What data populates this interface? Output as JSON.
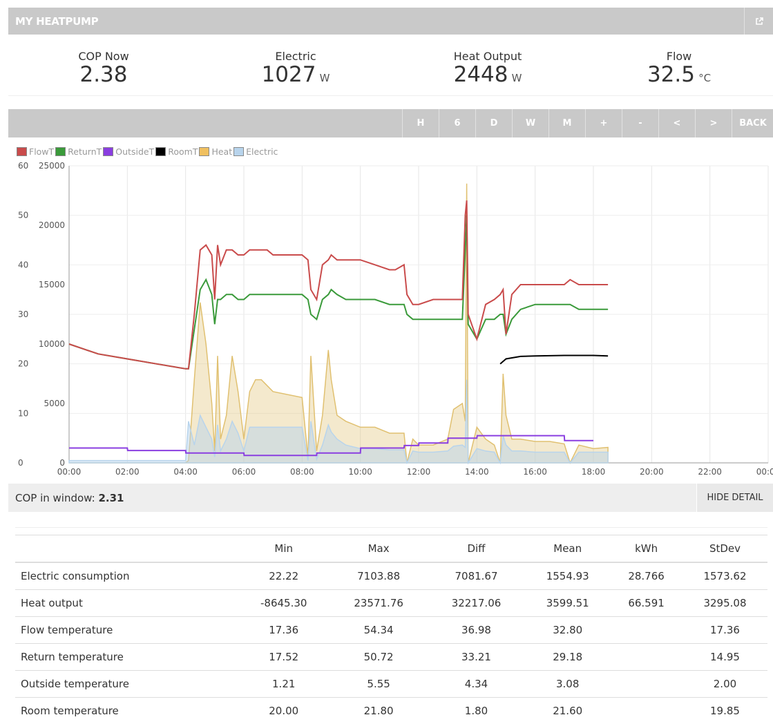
{
  "header": {
    "title": "MY HEATPUMP",
    "external_icon": "external-link-icon"
  },
  "stats": [
    {
      "label": "COP Now",
      "value": "2.38",
      "unit": ""
    },
    {
      "label": "Electric",
      "value": "1027",
      "unit": "W"
    },
    {
      "label": "Heat Output",
      "value": "2448",
      "unit": "W"
    },
    {
      "label": "Flow",
      "value": "32.5",
      "unit": "°C"
    }
  ],
  "toolbar": {
    "buttons": [
      "H",
      "6",
      "D",
      "W",
      "M",
      "+",
      "-",
      "<",
      ">",
      "BACK"
    ]
  },
  "legend": [
    {
      "name": "FlowT",
      "color": "#c94b4b"
    },
    {
      "name": "ReturnT",
      "color": "#3a9a3a"
    },
    {
      "name": "OutsideT",
      "color": "#8a3ee0"
    },
    {
      "name": "RoomT",
      "color": "#000000"
    },
    {
      "name": "Heat",
      "color": "#f0c060"
    },
    {
      "name": "Electric",
      "color": "#b8d4ec"
    }
  ],
  "chart_data": {
    "type": "line",
    "x_ticks": [
      "00:00",
      "02:00",
      "04:00",
      "06:00",
      "08:00",
      "10:00",
      "12:00",
      "14:00",
      "16:00",
      "18:00",
      "20:00",
      "22:00",
      "00:00"
    ],
    "xlim": [
      0,
      24
    ],
    "y_left_ticks": [
      0,
      10,
      20,
      30,
      40,
      50,
      60
    ],
    "y_left_lim": [
      0,
      60
    ],
    "y_right_ticks": [
      0,
      5000,
      10000,
      15000,
      20000,
      25000
    ],
    "y_right_lim": [
      0,
      25000
    ],
    "grid": true,
    "legend_position": "top-left",
    "series": [
      {
        "name": "FlowT",
        "axis": "left",
        "color": "#c94b4b",
        "x": [
          0,
          0.5,
          1,
          2,
          3,
          4,
          4.1,
          4.3,
          4.5,
          4.7,
          4.9,
          5.0,
          5.1,
          5.2,
          5.4,
          5.6,
          5.8,
          6.0,
          6.2,
          6.4,
          6.6,
          6.8,
          7,
          8,
          8.2,
          8.3,
          8.5,
          8.7,
          8.9,
          9.0,
          9.2,
          9.5,
          10,
          10.5,
          11,
          11.2,
          11.5,
          11.6,
          11.8,
          12,
          12.5,
          13,
          13.2,
          13.5,
          13.6,
          13.65,
          13.7,
          14,
          14.3,
          14.6,
          14.8,
          14.9,
          15.0,
          15.2,
          15.5,
          16,
          16.5,
          17,
          17.2,
          17.5,
          18,
          18.5
        ],
        "y": [
          24,
          23,
          22,
          21,
          20,
          19,
          19,
          30,
          43,
          44,
          42,
          33,
          44,
          40,
          43,
          43,
          42,
          42,
          43,
          43,
          43,
          43,
          42,
          42,
          41,
          35,
          33,
          40,
          41,
          42,
          41,
          41,
          41,
          40,
          39,
          39,
          40,
          34,
          32,
          32,
          33,
          33,
          33,
          33,
          50,
          53,
          30,
          25,
          32,
          33,
          34,
          35,
          26,
          34,
          36,
          36,
          36,
          36,
          37,
          36,
          36,
          36
        ]
      },
      {
        "name": "ReturnT",
        "axis": "left",
        "color": "#3a9a3a",
        "x": [
          0,
          0.5,
          1,
          2,
          3,
          4,
          4.1,
          4.3,
          4.5,
          4.7,
          4.9,
          5.0,
          5.1,
          5.2,
          5.4,
          5.6,
          5.8,
          6.0,
          6.2,
          6.4,
          6.6,
          6.8,
          7,
          8,
          8.2,
          8.3,
          8.5,
          8.7,
          8.9,
          9.0,
          9.2,
          9.5,
          10,
          10.5,
          11,
          11.2,
          11.5,
          11.6,
          11.8,
          12,
          12.5,
          13,
          13.2,
          13.5,
          13.6,
          13.65,
          13.7,
          14,
          14.3,
          14.6,
          14.8,
          14.9,
          15.0,
          15.2,
          15.5,
          16,
          16.5,
          17,
          17.2,
          17.5,
          18,
          18.5
        ],
        "y": [
          24,
          23,
          22,
          21,
          20,
          19,
          19,
          27,
          35,
          37,
          34,
          28,
          33,
          33,
          34,
          34,
          33,
          33,
          34,
          34,
          34,
          34,
          34,
          34,
          33,
          30,
          29,
          33,
          34,
          35,
          34,
          33,
          33,
          33,
          32,
          32,
          32,
          30,
          29,
          29,
          29,
          29,
          29,
          29,
          43,
          50,
          28,
          25,
          29,
          29,
          30,
          30,
          26,
          29,
          31,
          32,
          32,
          32,
          32,
          31,
          31,
          31
        ]
      },
      {
        "name": "OutsideT",
        "axis": "left",
        "color": "#8a3ee0",
        "x": [
          0,
          2,
          2.01,
          4,
          4.01,
          6,
          6.01,
          8.5,
          8.51,
          10,
          10.01,
          11.5,
          11.51,
          12,
          12.01,
          13,
          13.01,
          14,
          14.01,
          17,
          17.01,
          18
        ],
        "y": [
          3,
          3,
          2.5,
          2.5,
          2,
          2,
          1.5,
          1.5,
          2,
          2,
          3,
          3,
          3.5,
          3.5,
          4,
          4,
          5,
          5,
          5.5,
          5.5,
          4.5,
          4.5
        ]
      },
      {
        "name": "RoomT",
        "axis": "left",
        "color": "#000000",
        "x": [
          14.8,
          15,
          15.5,
          16,
          17,
          18,
          18.5
        ],
        "y": [
          20,
          21,
          21.5,
          21.6,
          21.7,
          21.7,
          21.6
        ]
      },
      {
        "name": "Heat",
        "axis": "right",
        "color": "#e0c070",
        "x": [
          0,
          4,
          4.1,
          4.3,
          4.5,
          4.7,
          4.9,
          5.0,
          5.1,
          5.2,
          5.4,
          5.6,
          5.8,
          6.0,
          6.2,
          6.4,
          6.6,
          6.8,
          7,
          8,
          8.2,
          8.3,
          8.5,
          8.7,
          8.9,
          9.0,
          9.2,
          9.5,
          10,
          10.5,
          11,
          11.2,
          11.5,
          11.6,
          11.8,
          12,
          12.5,
          13,
          13.2,
          13.5,
          13.6,
          13.65,
          13.7,
          14,
          14.3,
          14.6,
          14.8,
          14.9,
          15.0,
          15.2,
          15.5,
          16,
          16.5,
          17,
          17.2,
          17.5,
          18,
          18.5
        ],
        "y": [
          0,
          0,
          200,
          7000,
          13500,
          10000,
          5000,
          1000,
          9000,
          2000,
          4000,
          9000,
          6000,
          2000,
          6000,
          7000,
          7000,
          6500,
          6000,
          5500,
          500,
          9000,
          1000,
          4000,
          9500,
          7000,
          4000,
          3500,
          3000,
          3000,
          2500,
          2500,
          2500,
          0,
          2000,
          1500,
          1500,
          2000,
          4500,
          5000,
          3500,
          23500,
          0,
          3000,
          2000,
          1500,
          0,
          7500,
          4000,
          2000,
          2000,
          1800,
          1800,
          1600,
          0,
          1500,
          1200,
          1300
        ]
      },
      {
        "name": "Electric",
        "axis": "right",
        "color": "#b8d4ec",
        "x": [
          0,
          4,
          4.1,
          4.3,
          4.5,
          4.7,
          4.9,
          5.0,
          5.1,
          5.2,
          5.4,
          5.6,
          5.8,
          6.0,
          6.2,
          6.4,
          6.6,
          6.8,
          7,
          8,
          8.2,
          8.3,
          8.5,
          8.7,
          8.9,
          9.0,
          9.2,
          9.5,
          10,
          10.5,
          11,
          11.2,
          11.5,
          11.6,
          11.8,
          12,
          12.5,
          13,
          13.2,
          13.5,
          13.6,
          13.65,
          13.7,
          14,
          14.3,
          14.6,
          14.8,
          14.9,
          15.0,
          15.2,
          15.5,
          16,
          16.5,
          17,
          17.2,
          17.5,
          18,
          18.5
        ],
        "y": [
          200,
          200,
          3500,
          1500,
          4000,
          3000,
          2000,
          500,
          3200,
          1000,
          2000,
          3500,
          2500,
          1000,
          3000,
          3000,
          3000,
          3000,
          3000,
          3000,
          200,
          3500,
          300,
          1500,
          3200,
          2600,
          2000,
          1500,
          1200,
          1200,
          1100,
          1100,
          1100,
          0,
          1000,
          900,
          900,
          1000,
          1400,
          1500,
          1300,
          7000,
          0,
          1200,
          1000,
          900,
          0,
          2300,
          1500,
          1000,
          1000,
          900,
          900,
          900,
          0,
          900,
          900,
          900
        ]
      }
    ]
  },
  "cop_window": {
    "label": "COP in window:",
    "value": "2.31",
    "hide_label": "HIDE DETAIL"
  },
  "table": {
    "headers": [
      "",
      "Min",
      "Max",
      "Diff",
      "Mean",
      "kWh",
      "StDev"
    ],
    "rows": [
      [
        "Electric consumption",
        "22.22",
        "7103.88",
        "7081.67",
        "1554.93",
        "28.766",
        "1573.62"
      ],
      [
        "Heat output",
        "-8645.30",
        "23571.76",
        "32217.06",
        "3599.51",
        "66.591",
        "3295.08"
      ],
      [
        "Flow temperature",
        "17.36",
        "54.34",
        "36.98",
        "32.80",
        "",
        "17.36"
      ],
      [
        "Return temperature",
        "17.52",
        "50.72",
        "33.21",
        "29.18",
        "",
        "14.95"
      ],
      [
        "Outside temperature",
        "1.21",
        "5.55",
        "4.34",
        "3.08",
        "",
        "2.00"
      ],
      [
        "Room temperature",
        "20.00",
        "21.80",
        "1.80",
        "21.60",
        "",
        "19.85"
      ]
    ]
  }
}
